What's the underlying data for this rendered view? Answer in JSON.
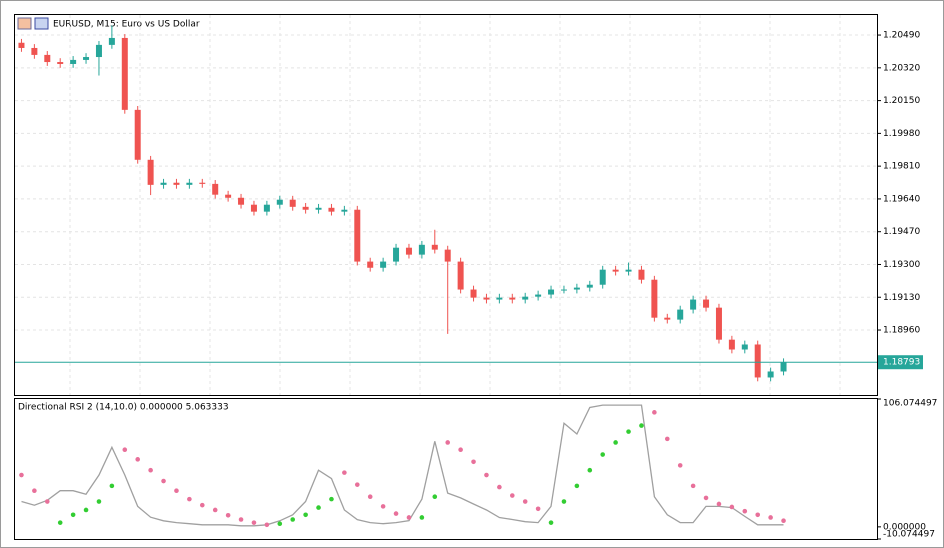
{
  "chart_data": [
    {
      "type": "candlestick",
      "title": "EURUSD, M15:  Euro vs US Dollar",
      "up_color": "#26a69a",
      "down_color": "#ef5350",
      "grid": true,
      "ylim": [
        1.18623,
        1.20594
      ],
      "yticks": [
        {
          "value": 1.2049,
          "label": "1.20490"
        },
        {
          "value": 1.2032,
          "label": "1.20320"
        },
        {
          "value": 1.2015,
          "label": "1.20150"
        },
        {
          "value": 1.1998,
          "label": "1.19980"
        },
        {
          "value": 1.1981,
          "label": "1.19810"
        },
        {
          "value": 1.1964,
          "label": "1.19640"
        },
        {
          "value": 1.1947,
          "label": "1.19470"
        },
        {
          "value": 1.193,
          "label": "1.19300"
        },
        {
          "value": 1.1913,
          "label": "1.19130"
        },
        {
          "value": 1.1896,
          "label": "1.18960"
        }
      ],
      "current_price": 1.18793,
      "current_price_color": "#26a69a",
      "open": [
        1.2045,
        1.20423,
        1.20387,
        1.2035,
        1.2034,
        1.20361,
        1.20376,
        1.20439,
        1.20475,
        1.20102,
        1.19843,
        1.19713,
        1.19724,
        1.19713,
        1.19724,
        1.19718,
        1.19662,
        1.19646,
        1.1961,
        1.19574,
        1.1961,
        1.19636,
        1.19599,
        1.19584,
        1.19594,
        1.19574,
        1.19584,
        1.19315,
        1.19283,
        1.19315,
        1.19387,
        1.19351,
        1.19402,
        1.19377,
        1.19315,
        1.1917,
        1.19128,
        1.19118,
        1.19128,
        1.19118,
        1.19133,
        1.19144,
        1.1917,
        1.1917,
        1.1918,
        1.19195,
        1.19273,
        1.19263,
        1.19273,
        1.19221,
        1.19024,
        1.19014,
        1.19066,
        1.19118,
        1.19076,
        1.1891,
        1.18859,
        1.18885,
        1.18714,
        1.18745
      ],
      "high": [
        1.2047,
        1.20443,
        1.20407,
        1.2037,
        1.20381,
        1.20396,
        1.20459,
        1.2054,
        1.20495,
        1.20122,
        1.19863,
        1.19744,
        1.19744,
        1.19744,
        1.19744,
        1.19738,
        1.19682,
        1.19666,
        1.1963,
        1.1963,
        1.19656,
        1.19656,
        1.19619,
        1.19614,
        1.19614,
        1.19604,
        1.19604,
        1.19335,
        1.19335,
        1.19407,
        1.19407,
        1.19422,
        1.1948,
        1.19397,
        1.19335,
        1.1919,
        1.19148,
        1.19148,
        1.19148,
        1.19153,
        1.19164,
        1.1919,
        1.1919,
        1.192,
        1.19215,
        1.19293,
        1.19293,
        1.1931,
        1.19293,
        1.19241,
        1.19044,
        1.19086,
        1.19138,
        1.19138,
        1.19096,
        1.1893,
        1.18905,
        1.18905,
        1.18765,
        1.18813
      ],
      "low": [
        1.20403,
        1.20367,
        1.2033,
        1.2032,
        1.2032,
        1.20341,
        1.2028,
        1.20419,
        1.20082,
        1.19823,
        1.1966,
        1.19693,
        1.19693,
        1.19693,
        1.19698,
        1.19642,
        1.19626,
        1.1959,
        1.19554,
        1.19554,
        1.1959,
        1.19579,
        1.19564,
        1.19564,
        1.19554,
        1.19554,
        1.19295,
        1.19263,
        1.19263,
        1.19295,
        1.19331,
        1.19331,
        1.19357,
        1.1894,
        1.1915,
        1.19108,
        1.19098,
        1.19098,
        1.19098,
        1.19098,
        1.19113,
        1.19124,
        1.1915,
        1.1915,
        1.1916,
        1.19175,
        1.19243,
        1.19243,
        1.19201,
        1.19004,
        1.18994,
        1.18994,
        1.19046,
        1.19056,
        1.1889,
        1.18839,
        1.18839,
        1.18694,
        1.18694,
        1.18725
      ],
      "close": [
        1.20423,
        1.20387,
        1.2035,
        1.2034,
        1.20361,
        1.20376,
        1.20439,
        1.20475,
        1.20102,
        1.19843,
        1.19713,
        1.19724,
        1.19713,
        1.19724,
        1.19718,
        1.19662,
        1.19646,
        1.1961,
        1.19574,
        1.1961,
        1.19636,
        1.19599,
        1.19584,
        1.19594,
        1.19574,
        1.19584,
        1.19315,
        1.19283,
        1.19315,
        1.19387,
        1.19351,
        1.19402,
        1.19377,
        1.19315,
        1.1917,
        1.19128,
        1.19118,
        1.19128,
        1.19118,
        1.19133,
        1.19144,
        1.1917,
        1.1917,
        1.1918,
        1.19195,
        1.19273,
        1.19263,
        1.19273,
        1.19221,
        1.19024,
        1.19014,
        1.19066,
        1.19118,
        1.19076,
        1.1891,
        1.18859,
        1.18885,
        1.18714,
        1.18745,
        1.18793
      ]
    },
    {
      "type": "line",
      "title": "Directional RSI 2 (14,10.0) 0.000000 5.063333",
      "ylim": [
        -10.074497,
        106.074497
      ],
      "yticks": [
        106.074497,
        {
          "value": 0,
          "label": "0.000000"
        },
        -10.074497
      ],
      "series": [
        {
          "color": "#a0a0a0",
          "style": "line",
          "values": [
            21,
            18,
            22,
            30,
            30,
            27,
            43,
            66,
            43,
            17,
            8,
            5,
            3.5,
            2.6,
            1.7,
            1.7,
            1.7,
            0.9,
            0.9,
            1.7,
            5,
            10,
            21,
            47,
            40,
            14,
            6,
            3.5,
            2.6,
            3.5,
            5.2,
            23,
            71,
            28,
            24,
            19,
            14,
            7.8,
            6.1,
            4.3,
            3.5,
            17,
            86,
            77,
            99,
            101,
            101,
            101,
            101,
            25,
            10,
            3.5,
            3.5,
            17,
            17,
            16,
            8.7,
            1.7,
            1.7,
            1.7
          ]
        },
        {
          "color": "#e8709a",
          "style": "dots",
          "values": [
            43,
            30,
            21,
            null,
            null,
            null,
            null,
            null,
            64,
            56,
            47,
            38,
            30,
            23,
            18,
            14,
            9.6,
            6.1,
            3.5,
            1.7,
            null,
            null,
            null,
            null,
            null,
            45,
            35,
            25,
            17,
            11,
            7.8,
            null,
            null,
            70,
            64,
            54,
            43,
            33,
            26,
            21,
            15,
            null,
            null,
            null,
            null,
            null,
            null,
            null,
            null,
            95,
            73,
            51,
            34,
            24,
            19,
            16.5,
            13,
            10,
            7.8,
            5.1
          ]
        },
        {
          "color": "#32cd32",
          "style": "dots",
          "values": [
            null,
            null,
            null,
            3.5,
            10,
            14,
            21,
            34,
            null,
            null,
            null,
            null,
            null,
            null,
            null,
            null,
            null,
            null,
            null,
            null,
            2.6,
            6.1,
            10,
            16,
            23,
            null,
            null,
            null,
            null,
            null,
            null,
            7.8,
            25,
            null,
            null,
            null,
            null,
            null,
            null,
            null,
            null,
            3.5,
            21,
            34,
            47,
            60,
            70,
            79,
            84,
            null,
            null,
            null,
            null,
            null,
            null,
            null,
            null,
            null,
            null,
            null
          ]
        }
      ]
    }
  ]
}
